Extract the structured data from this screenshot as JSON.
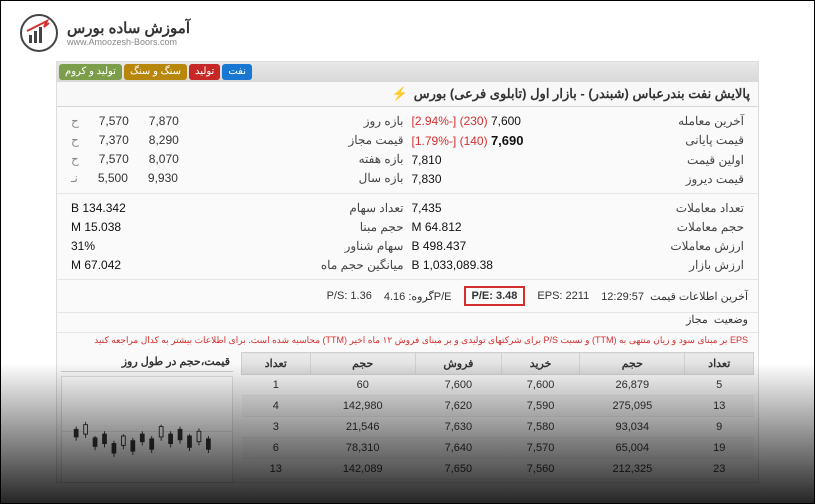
{
  "logo": {
    "title": "آموزش ساده بورس",
    "sub": "www.Amoozesh-Boors.com"
  },
  "tabs": [
    {
      "label": "تولید و کروم",
      "color": "#7c9e4a"
    },
    {
      "label": "سنگ و سنگ",
      "color": "#b8860b"
    },
    {
      "label": "تولید",
      "color": "#c62828"
    },
    {
      "label": "نفت",
      "color": "#1976d2"
    }
  ],
  "header": {
    "title": "پالایش نفت بندرعباس (شبندر) - بازار اول (تابلوی فرعی) بورس"
  },
  "stats1": [
    {
      "label": "آخرین معامله",
      "value": "7,600",
      "change": "(230)",
      "pct": "[-2.94%]"
    },
    {
      "label": "قیمت پایانی",
      "value": "7,690",
      "bold": true,
      "change": "(140)",
      "pct": "[-1.79%]"
    },
    {
      "label": "اولین قیمت",
      "value": "7,810"
    },
    {
      "label": "قیمت دیروز",
      "value": "7,830"
    }
  ],
  "stats2": [
    {
      "label": "بازه روز",
      "v1": "7,870",
      "v2": "7,570",
      "s": "ح"
    },
    {
      "label": "قیمت مجاز",
      "v1": "8,290",
      "v2": "7,370",
      "s": "ح"
    },
    {
      "label": "بازه هفته",
      "v1": "8,070",
      "v2": "7,570",
      "s": "ح"
    },
    {
      "label": "بازه سال",
      "v1": "9,930",
      "v2": "5,500",
      "s": "نـ"
    }
  ],
  "stats3": [
    {
      "label": "تعداد معاملات",
      "value": "7,435"
    },
    {
      "label": "حجم معاملات",
      "value": "64.812 M"
    },
    {
      "label": "ارزش معاملات",
      "value": "498.437 B"
    },
    {
      "label": "ارزش بازار",
      "value": "1,033,089.38 B"
    }
  ],
  "stats4": [
    {
      "label": "تعداد سهام",
      "value": "134.342 B"
    },
    {
      "label": "حجم مبنا",
      "value": "15.038 M"
    },
    {
      "label": "سهام شناور",
      "value": "31%"
    },
    {
      "label": "میانگین حجم ماه",
      "value": "67.042 M"
    }
  ],
  "eps": {
    "time_label": "آخرین اطلاعات قیمت",
    "time": "12:29:57",
    "status_label": "وضعیت",
    "status": "مجاز",
    "eps_label": "EPS:",
    "eps_val": "2211",
    "pe_label": "P/E:",
    "pe_val": "3.48",
    "pe_group_label": "P/Eگروه:",
    "pe_group_val": "4.16",
    "ps_label": "P/S:",
    "ps_val": "1.36",
    "note": "EPS بر مبنای سود و زیان منتهی به (TTM) و نسبت P/S برای شرکتهای تولیدی و بر مبنای فروش ۱۲ ماه اخیر (TTM) محاسبه شده است. برای اطلاعات بیشتر به کدال مراجعه کنید"
  },
  "chart": {
    "header": "قیمت،حجم در طول روز"
  },
  "orderTable": {
    "headers": [
      "تعداد",
      "حجم",
      "خرید",
      "فروش",
      "حجم",
      "تعداد"
    ],
    "rows": [
      [
        "5",
        "26,879",
        "7,600",
        "7,600",
        "60",
        "1"
      ],
      [
        "13",
        "275,095",
        "7,590",
        "7,620",
        "142,980",
        "4"
      ],
      [
        "9",
        "93,034",
        "7,580",
        "7,630",
        "21,546",
        "3"
      ],
      [
        "19",
        "65,004",
        "7,570",
        "7,640",
        "78,310",
        "6"
      ],
      [
        "23",
        "212,325",
        "7,560",
        "7,650",
        "142,089",
        "13"
      ]
    ]
  }
}
